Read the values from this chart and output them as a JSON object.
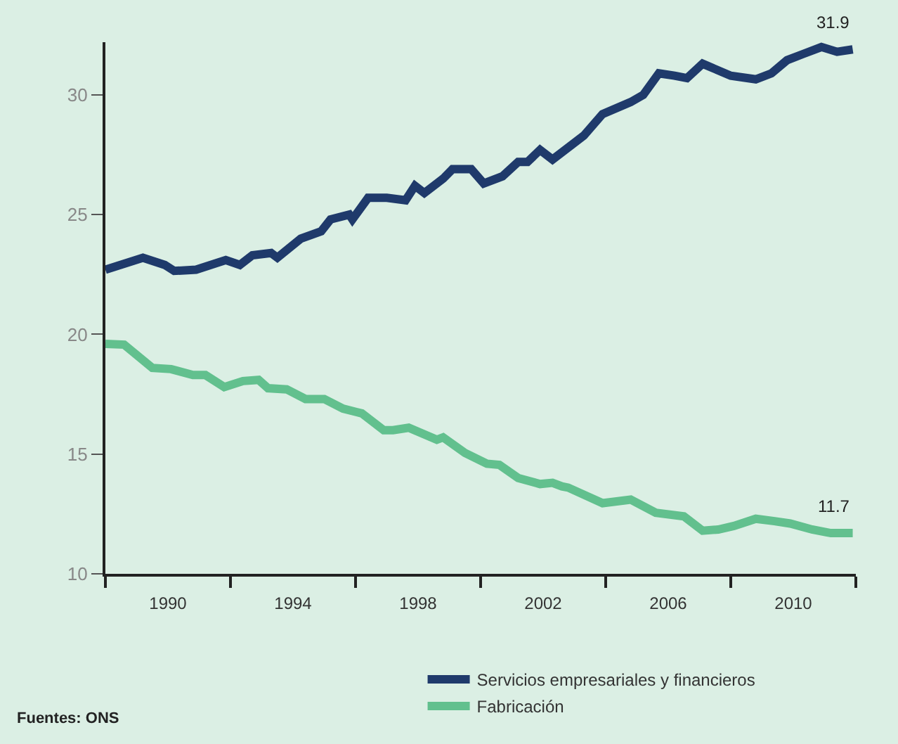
{
  "chart_data": {
    "type": "line",
    "xlim": [
      1988,
      2012
    ],
    "xticks": [
      {
        "value": 1988,
        "label": null
      },
      {
        "value": 1990,
        "label": "1990"
      },
      {
        "value": 1992,
        "label": null
      },
      {
        "value": 1994,
        "label": "1994"
      },
      {
        "value": 1996,
        "label": null
      },
      {
        "value": 1998,
        "label": "1998"
      },
      {
        "value": 2000,
        "label": null
      },
      {
        "value": 2002,
        "label": "2002"
      },
      {
        "value": 2004,
        "label": null
      },
      {
        "value": 2006,
        "label": "2006"
      },
      {
        "value": 2008,
        "label": null
      },
      {
        "value": 2010,
        "label": "2010"
      },
      {
        "value": 2012,
        "label": null
      }
    ],
    "ylim": [
      10,
      32.2
    ],
    "yticks": [
      10,
      15,
      20,
      25,
      30
    ],
    "grid": false,
    "legend": "bottom",
    "marker": "none",
    "line_style": "solid",
    "series": [
      {
        "name": "Servicios empresariales y financieros",
        "color": "#1f3a6b",
        "x": [
          1988,
          1989.2,
          1989.9,
          1990.2,
          1990.9,
          1991.85,
          1992.3,
          1992.7,
          1993.3,
          1993.5,
          1994.25,
          1994.9,
          1995.2,
          1995.8,
          1995.9,
          1996.4,
          1997.0,
          1997.6,
          1997.9,
          1998.2,
          1998.8,
          1999.1,
          1999.7,
          2000.1,
          2000.7,
          2001.2,
          2001.5,
          2001.9,
          2002.3,
          2003.3,
          2003.9,
          2004.8,
          2005.2,
          2005.7,
          2006.2,
          2006.6,
          2007.1,
          2008.0,
          2008.8,
          2009.3,
          2009.8,
          2010.3,
          2010.9,
          2011.4,
          2011.9
        ],
        "values": [
          22.7,
          23.2,
          22.9,
          22.65,
          22.7,
          23.1,
          22.9,
          23.3,
          23.4,
          23.2,
          24.0,
          24.3,
          24.8,
          25.0,
          24.8,
          25.7,
          25.7,
          25.6,
          26.2,
          25.9,
          26.5,
          26.9,
          26.9,
          26.3,
          26.6,
          27.2,
          27.2,
          27.7,
          27.3,
          28.3,
          29.2,
          29.7,
          30.0,
          30.9,
          30.8,
          30.7,
          31.3,
          30.8,
          30.65,
          30.9,
          31.45,
          31.7,
          32.0,
          31.8,
          31.9
        ]
      },
      {
        "name": "Fabricación",
        "color": "#62c08e",
        "x": [
          1988,
          1988.6,
          1989.5,
          1990.1,
          1990.8,
          1991.2,
          1991.8,
          1992.4,
          1992.9,
          1993.2,
          1993.8,
          1994.4,
          1995.0,
          1995.6,
          1996.2,
          1996.9,
          1997.2,
          1997.7,
          1998.6,
          1998.8,
          1999.5,
          2000.2,
          2000.6,
          2001.2,
          2001.9,
          2002.3,
          2002.6,
          2002.8,
          2003.9,
          2004.8,
          2005.6,
          2006.5,
          2007.1,
          2007.6,
          2008.1,
          2008.8,
          2009.4,
          2009.9,
          2010.6,
          2011.2,
          2011.9
        ],
        "values": [
          19.6,
          19.57,
          18.6,
          18.55,
          18.3,
          18.3,
          17.8,
          18.05,
          18.1,
          17.75,
          17.7,
          17.3,
          17.3,
          16.9,
          16.7,
          16.0,
          16.0,
          16.1,
          15.6,
          15.7,
          15.05,
          14.6,
          14.55,
          14.0,
          13.75,
          13.8,
          13.65,
          13.6,
          12.95,
          13.1,
          12.55,
          12.4,
          11.8,
          11.85,
          12.0,
          12.3,
          12.2,
          12.1,
          11.85,
          11.7,
          11.7
        ]
      }
    ],
    "annotations": [
      {
        "text": "31.9",
        "x": 2011.9,
        "y": 31.9
      },
      {
        "text": "11.7",
        "x": 2011.9,
        "y": 11.7
      },
      "Fuentes: ONS"
    ]
  }
}
